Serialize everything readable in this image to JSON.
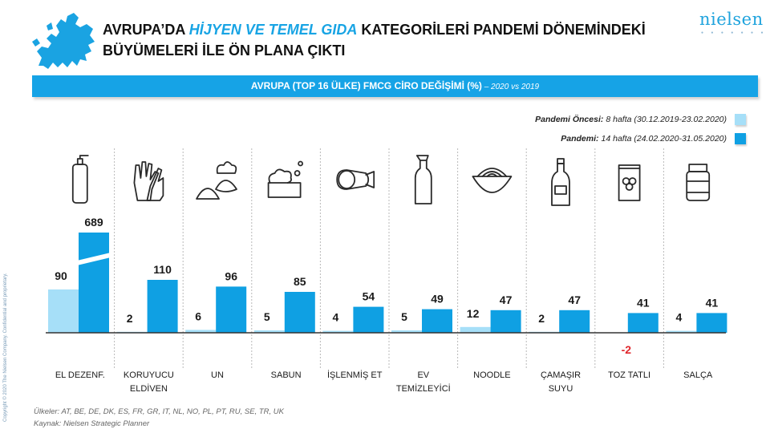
{
  "header": {
    "title_part1": "AVRUPA’DA ",
    "title_highlight": "HİJYEN VE TEMEL GIDA",
    "title_part2": " KATEGORİLERİ PANDEMİ DÖNEMİNDEKİ BÜYÜMELERİ İLE ÖN PLANA ÇIKTI",
    "logo": "nielsen"
  },
  "banner": {
    "main": "AVRUPA (TOP 16 ÜLKE) FMCG CİRO DEĞİŞİMİ (%)",
    "sub": " – 2020 vs 2019"
  },
  "legend": [
    {
      "bold": "Pandemi Öncesi:",
      "text": "8 hafta (30.12.2019-23.02.2020)"
    },
    {
      "bold": "Pandemi:",
      "text": "14 hafta (24.02.2020-31.05.2020)"
    }
  ],
  "colors": {
    "pre": "#a6dff8",
    "pandemic": "#0fa0e3",
    "negative_label": "#e0262c",
    "banner": "#16a3e6"
  },
  "chart_data": {
    "type": "bar",
    "title": "AVRUPA (TOP 16 ÜLKE) FMCG CİRO DEĞİŞİMİ (%)",
    "categories": [
      "EL DEZENF.",
      "KORUYUCU ELDİVEN",
      "UN",
      "SABUN",
      "İŞLENMİŞ ET",
      "EV TEMİZLEYİCİ",
      "NOODLE",
      "ÇAMAŞIR SUYU",
      "TOZ TATLI",
      "SALÇA"
    ],
    "category_lines": [
      [
        "EL DEZENF."
      ],
      [
        "KORUYUCU",
        "ELDİVEN"
      ],
      [
        "UN"
      ],
      [
        "SABUN"
      ],
      [
        "İŞLENMİŞ ET"
      ],
      [
        "EV",
        "TEMİZLEYİCİ"
      ],
      [
        "NOODLE"
      ],
      [
        "ÇAMAŞIR",
        "SUYU"
      ],
      [
        "TOZ TATLI"
      ],
      [
        "SALÇA"
      ]
    ],
    "icons": [
      "sanitizer-bottle-icon",
      "gloves-icon",
      "bread-flour-icon",
      "soap-icon",
      "sausage-icon",
      "cleaner-bottle-icon",
      "noodle-bowl-icon",
      "bleach-bottle-icon",
      "dessert-packet-icon",
      "sauce-jar-icon"
    ],
    "series": [
      {
        "name": "Pandemi Öncesi",
        "values": [
          90,
          2,
          6,
          5,
          4,
          5,
          12,
          2,
          -2,
          4
        ]
      },
      {
        "name": "Pandemi",
        "values": [
          689,
          110,
          96,
          85,
          54,
          49,
          47,
          47,
          41,
          41
        ]
      }
    ],
    "axis_break": true,
    "grid": false
  },
  "footer": {
    "countries": "Ülkeler: AT, BE, DE, DK, ES, FR, GR, IT, NL, NO, PL, PT, RU, SE, TR, UK",
    "source": "Kaynak:  Nielsen Strategic Planner"
  },
  "copyright": "Copyright © 2020 The Nielsen Company. Confidential and proprietary."
}
